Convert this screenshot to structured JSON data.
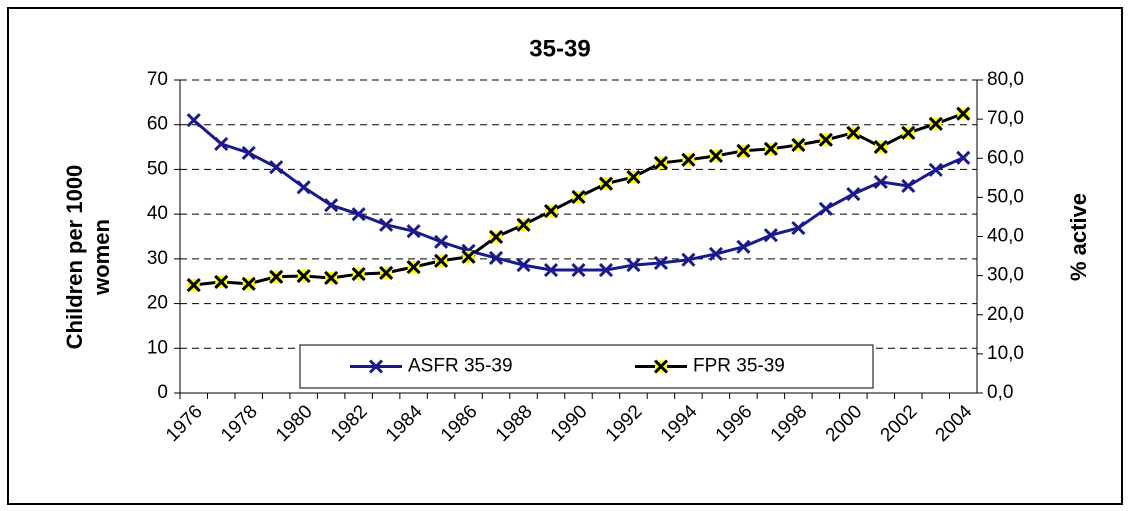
{
  "chart_data": {
    "type": "line",
    "title": "35-39",
    "ylabel": "Children per 1000 women",
    "y2label": "% active",
    "categories": [
      "1976",
      null,
      "1978",
      null,
      "1980",
      null,
      "1982",
      null,
      "1984",
      null,
      "1986",
      null,
      "1988",
      null,
      "1990",
      null,
      "1992",
      null,
      "1994",
      null,
      "1996",
      null,
      "1998",
      null,
      "2000",
      null,
      "2002",
      null,
      "2004"
    ],
    "series": [
      {
        "name": "ASFR 35-39",
        "color": "#1a1a8c",
        "values": [
          61,
          55.7,
          53.7,
          50.5,
          46,
          42,
          40,
          37.6,
          36.2,
          33.8,
          31.8,
          30.2,
          28.6,
          27.5,
          27.5,
          27.5,
          28.6,
          29.1,
          29.8,
          31.1,
          32.7,
          35.3,
          36.9,
          41.2,
          44.5,
          47.2,
          46.3,
          49.9,
          52.6
        ]
      },
      {
        "name": "FPR 35-39",
        "color": "#000000",
        "marker_color": "#ffff00",
        "axis": "y2",
        "values": [
          27.6,
          28.4,
          27.9,
          29.7,
          29.9,
          29.4,
          30.4,
          30.7,
          32.2,
          33.8,
          34.8,
          39.9,
          43.0,
          46.5,
          50.1,
          53.5,
          55.2,
          58.8,
          59.6,
          60.6,
          61.9,
          62.4,
          63.4,
          64.7,
          66.5,
          62.9,
          66.5,
          68.8,
          71.4
        ]
      }
    ],
    "ylim": [
      0,
      70
    ],
    "yticks": [
      0,
      10,
      20,
      30,
      40,
      50,
      60,
      70
    ],
    "y2lim": [
      0,
      80
    ],
    "y2ticks": [
      {
        "value": 0,
        "label": "0,0"
      },
      {
        "value": 10,
        "label": "10,0"
      },
      {
        "value": 20,
        "label": "20,0"
      },
      {
        "value": 30,
        "label": "30,0"
      },
      {
        "value": 40,
        "label": "40,0"
      },
      {
        "value": 50,
        "label": "50,0"
      },
      {
        "value": 60,
        "label": "60,0"
      },
      {
        "value": 70,
        "label": "70,0"
      },
      {
        "value": 80,
        "label": "80,0"
      }
    ],
    "grid": true,
    "legend": "bottom"
  }
}
